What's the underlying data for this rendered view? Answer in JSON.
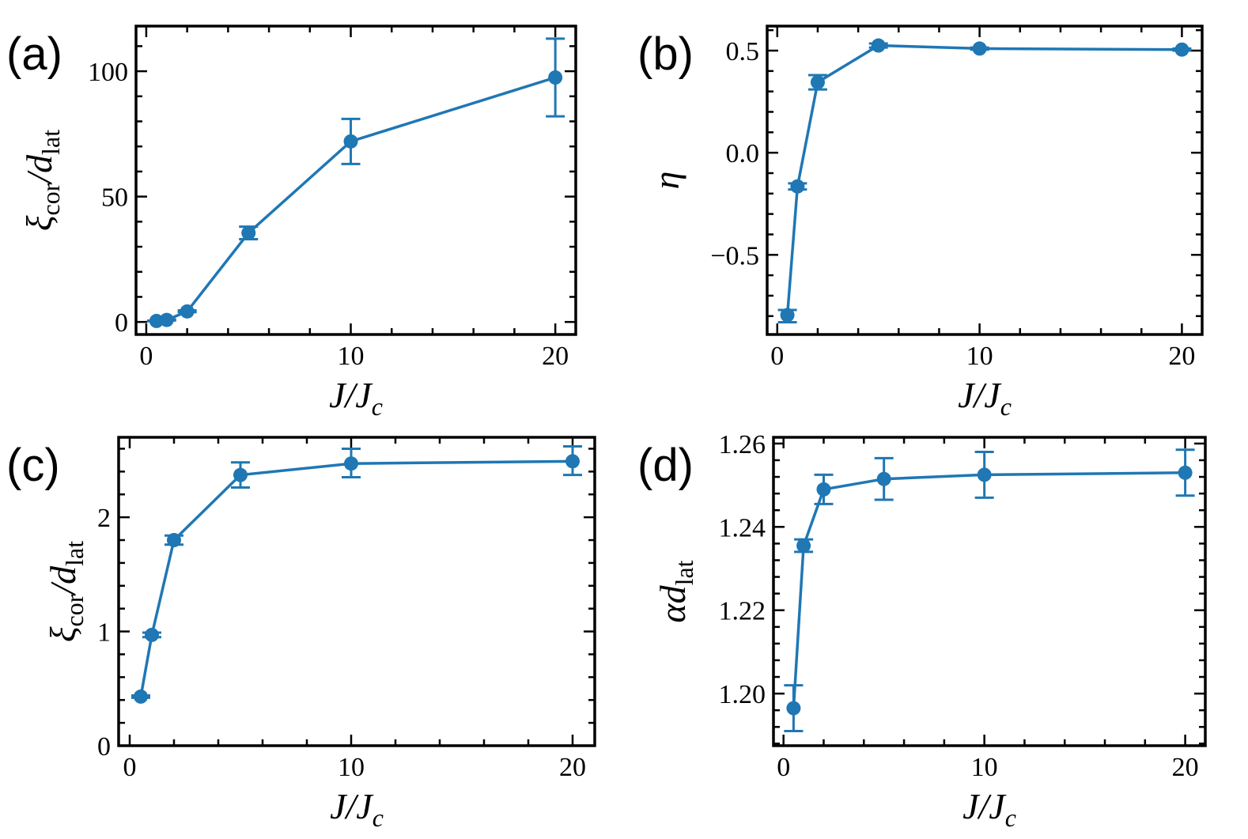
{
  "figure": {
    "series_color": "#1f77b4",
    "x_axis_label": {
      "base": "J/J",
      "sub": "c"
    }
  },
  "chart_data": [
    {
      "id": "a",
      "panel_label": "(a)",
      "type": "line",
      "ylabel": {
        "base": "ξ",
        "sub1": "cor",
        "mid": "/d",
        "sub2": "lat"
      },
      "xlabel": "J/Jc",
      "xlim": [
        -0.5,
        21
      ],
      "ylim": [
        -5,
        118
      ],
      "xticks": [
        0,
        10,
        20
      ],
      "xtick_labels": [
        "0",
        "10",
        "20"
      ],
      "yticks": [
        0,
        50,
        100
      ],
      "ytick_labels": [
        "0",
        "50",
        "100"
      ],
      "x": [
        0.5,
        1,
        2,
        5,
        10,
        20
      ],
      "y": [
        0.4,
        0.8,
        4.2,
        35.5,
        72,
        97.5
      ],
      "err_low": [
        0.3,
        0.6,
        3.9,
        33,
        63,
        82
      ],
      "err_high": [
        0.5,
        1,
        4.6,
        38,
        81,
        113
      ]
    },
    {
      "id": "b",
      "panel_label": "(b)",
      "type": "line",
      "ylabel": {
        "base": "η"
      },
      "xlabel": "J/Jc",
      "xlim": [
        -0.5,
        21
      ],
      "ylim": [
        -0.89,
        0.62
      ],
      "xticks": [
        0,
        10,
        20
      ],
      "xtick_labels": [
        "0",
        "10",
        "20"
      ],
      "yticks": [
        -0.5,
        0,
        0.5
      ],
      "ytick_labels": [
        "−0.5",
        "0.0",
        "0.5"
      ],
      "x": [
        0.5,
        1,
        2,
        5,
        10,
        20
      ],
      "y": [
        -0.795,
        -0.165,
        0.345,
        0.525,
        0.51,
        0.505
      ],
      "err_low": [
        -0.83,
        -0.18,
        0.31,
        0.515,
        0.505,
        0.5
      ],
      "err_high": [
        -0.77,
        -0.15,
        0.38,
        0.535,
        0.515,
        0.51
      ]
    },
    {
      "id": "c",
      "panel_label": "(c)",
      "type": "line",
      "ylabel": {
        "base": "ξ",
        "sub1": "cor",
        "mid": "/d",
        "sub2": "lat"
      },
      "xlabel": "J/Jc",
      "xlim": [
        -0.5,
        21
      ],
      "ylim": [
        0,
        2.7
      ],
      "xticks": [
        0,
        10,
        20
      ],
      "xtick_labels": [
        "0",
        "10",
        "20"
      ],
      "yticks": [
        0,
        1,
        2
      ],
      "ytick_labels": [
        "0",
        "1",
        "2"
      ],
      "x": [
        0.5,
        1,
        2,
        5,
        10,
        20
      ],
      "y": [
        0.43,
        0.97,
        1.8,
        2.37,
        2.47,
        2.49
      ],
      "err_low": [
        0.42,
        0.95,
        1.76,
        2.26,
        2.35,
        2.37
      ],
      "err_high": [
        0.44,
        0.99,
        1.84,
        2.48,
        2.6,
        2.62
      ]
    },
    {
      "id": "d",
      "panel_label": "(d)",
      "type": "line",
      "ylabel": {
        "base": "αd",
        "sub2": "lat"
      },
      "xlabel": "J/Jc",
      "xlim": [
        -0.5,
        21
      ],
      "ylim": [
        1.1875,
        1.2615
      ],
      "xticks": [
        0,
        10,
        20
      ],
      "xtick_labels": [
        "0",
        "10",
        "20"
      ],
      "yticks": [
        1.2,
        1.22,
        1.24,
        1.26
      ],
      "ytick_labels": [
        "1.20",
        "1.22",
        "1.24",
        "1.26"
      ],
      "x": [
        0.5,
        1,
        2,
        5,
        10,
        20
      ],
      "y": [
        1.1965,
        1.2355,
        1.249,
        1.2515,
        1.2525,
        1.253
      ],
      "err_low": [
        1.191,
        1.234,
        1.2455,
        1.2465,
        1.247,
        1.2475
      ],
      "err_high": [
        1.202,
        1.237,
        1.2525,
        1.2565,
        1.258,
        1.2585
      ]
    }
  ]
}
